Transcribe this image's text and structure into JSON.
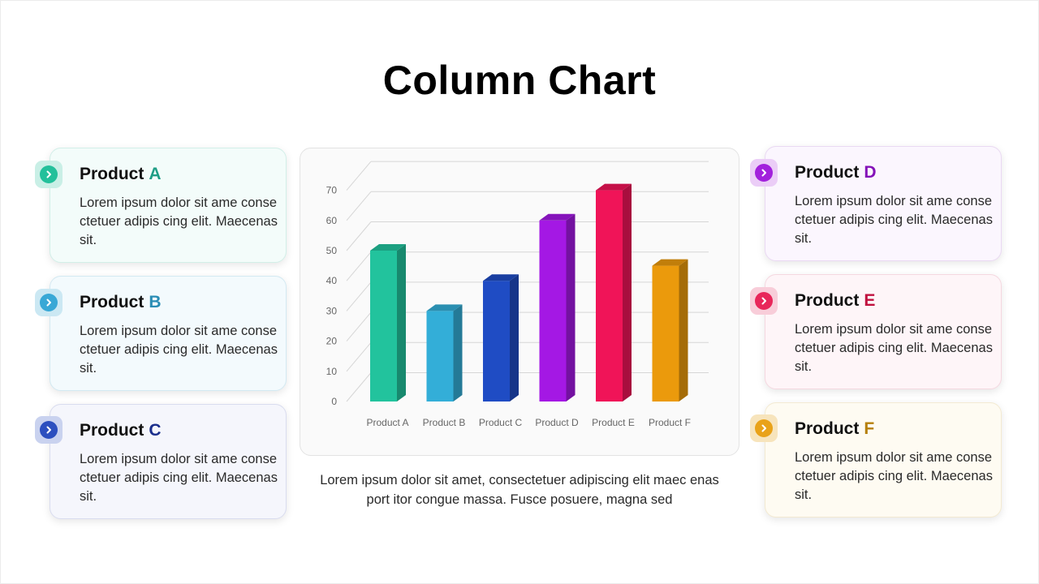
{
  "slide": {
    "title": "Column Chart",
    "caption": "Lorem ipsum dolor sit amet, consectetuer adipiscing elit maec enas port itor congue massa. Fusce posuere, magna sed"
  },
  "cards": [
    {
      "prefix": "Product",
      "letter": "A",
      "text": "Lorem ipsum dolor sit ame conse ctetuer adipis cing elit. Maecenas sit.",
      "color": "#1f9e86",
      "bg": "#f3fcfa",
      "border": "#d2efe8",
      "badge_bg": "#c9efe6",
      "dot": "#23c09b"
    },
    {
      "prefix": "Product",
      "letter": "B",
      "text": "Lorem ipsum dolor sit ame conse ctetuer adipis cing elit. Maecenas sit.",
      "color": "#2a8db5",
      "bg": "#f3fafd",
      "border": "#d3e9f2",
      "badge_bg": "#cbe8f3",
      "dot": "#38a8d6"
    },
    {
      "prefix": "Product",
      "letter": "C",
      "text": "Lorem ipsum dolor sit ame conse ctetuer adipis cing elit. Maecenas sit.",
      "color": "#1b2f8c",
      "bg": "#f5f6fc",
      "border": "#d9dcef",
      "badge_bg": "#c9d2ef",
      "dot": "#2c4fbf"
    },
    {
      "prefix": "Product",
      "letter": "D",
      "text": "Lorem ipsum dolor sit ame conse ctetuer adipis cing elit. Maecenas sit.",
      "color": "#8412b8",
      "bg": "#fbf6fe",
      "border": "#ead9f3",
      "badge_bg": "#ebcdf7",
      "dot": "#a220dc"
    },
    {
      "prefix": "Product",
      "letter": "E",
      "text": "Lorem ipsum dolor sit ame conse ctetuer adipis cing elit. Maecenas sit.",
      "color": "#c0103e",
      "bg": "#fef5f8",
      "border": "#f5d8e0",
      "badge_bg": "#f8cdd9",
      "dot": "#e8265a"
    },
    {
      "prefix": "Product",
      "letter": "F",
      "text": "Lorem ipsum dolor sit ame conse ctetuer adipis cing elit. Maecenas sit.",
      "color": "#b57f0a",
      "bg": "#fefbf2",
      "border": "#f3ead2",
      "badge_bg": "#f7e4bc",
      "dot": "#e9a219"
    }
  ],
  "chart_data": {
    "type": "bar",
    "style": "3d-column",
    "categories": [
      "Product A",
      "Product B",
      "Product C",
      "Product D",
      "Product E",
      "Product F"
    ],
    "values": [
      50,
      30,
      40,
      60,
      70,
      45
    ],
    "colors": [
      "#22c39d",
      "#33aed8",
      "#1f4cc4",
      "#a418e4",
      "#f01458",
      "#eb9a0c"
    ],
    "yticks": [
      "0",
      "10",
      "20",
      "30",
      "40",
      "50",
      "60",
      "70"
    ],
    "ylim": [
      0,
      70
    ],
    "grid": true,
    "title": "",
    "xlabel": "",
    "ylabel": ""
  }
}
